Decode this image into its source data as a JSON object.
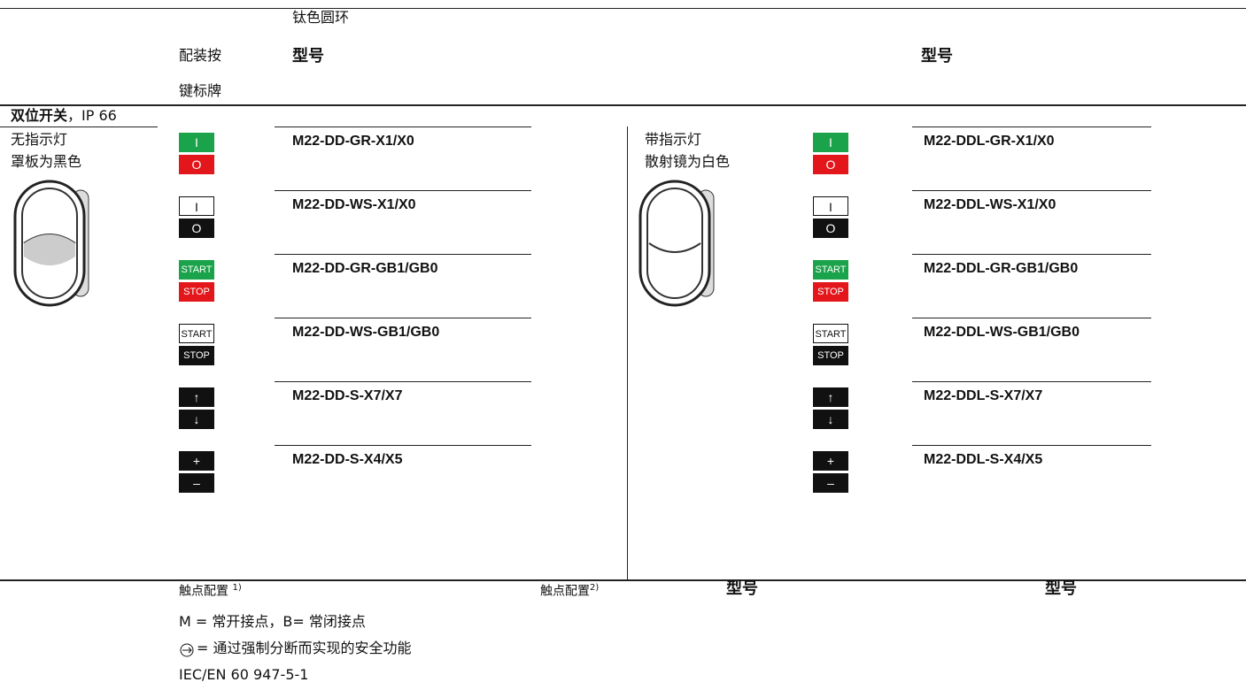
{
  "header": {
    "ring": "钛色圆环",
    "fit_line1": "配装按",
    "fit_line2": "键标牌",
    "model_left": "型号",
    "model_right": "型号"
  },
  "section": {
    "title": "双位开关",
    "suffix": "，IP 66"
  },
  "left": {
    "desc": [
      "无指示灯",
      "罩板为黑色"
    ],
    "rows": [
      {
        "top": "I",
        "bottom": "O",
        "model": "M22-DD-GR-X1/X0"
      },
      {
        "top": "I",
        "bottom": "O",
        "model": "M22-DD-WS-X1/X0"
      },
      {
        "top": "START",
        "bottom": "STOP",
        "model": "M22-DD-GR-GB1/GB0"
      },
      {
        "top": "START",
        "bottom": "STOP",
        "model": "M22-DD-WS-GB1/GB0"
      },
      {
        "top": "↑",
        "bottom": "↓",
        "model": "M22-DD-S-X7/X7"
      },
      {
        "top": "+",
        "bottom": "–",
        "model": "M22-DD-S-X4/X5"
      }
    ]
  },
  "right": {
    "desc": [
      "带指示灯",
      "散射镜为白色"
    ],
    "rows": [
      {
        "top": "I",
        "bottom": "O",
        "model": "M22-DDL-GR-X1/X0"
      },
      {
        "top": "I",
        "bottom": "O",
        "model": "M22-DDL-WS-X1/X0"
      },
      {
        "top": "START",
        "bottom": "STOP",
        "model": "M22-DDL-GR-GB1/GB0"
      },
      {
        "top": "START",
        "bottom": "STOP",
        "model": "M22-DDL-WS-GB1/GB0"
      },
      {
        "top": "↑",
        "bottom": "↓",
        "model": "M22-DDL-S-X7/X7"
      },
      {
        "top": "+",
        "bottom": "–",
        "model": "M22-DDL-S-X4/X5"
      }
    ]
  },
  "footer": {
    "contact_left": "触点配置",
    "note_left": "1)",
    "contact_right": "触点配置",
    "note_right": "2)",
    "model_left": "型号",
    "model_right": "型号",
    "legend": [
      "M = 常开接点，B= 常闭接点",
      "= 通过强制分断而实现的安全功能",
      "IEC/EN 60 947-5-1"
    ]
  }
}
